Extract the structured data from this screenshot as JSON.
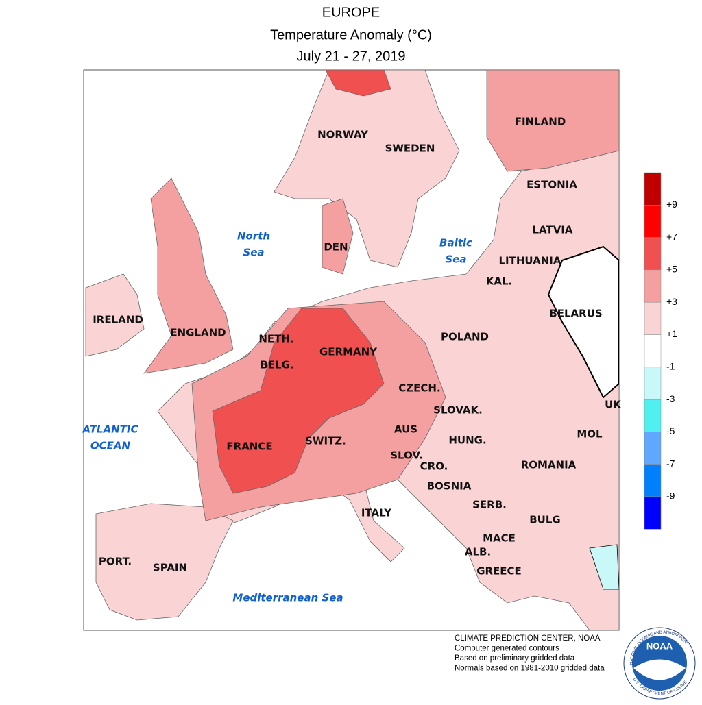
{
  "header": {
    "title": "EUROPE",
    "subtitle": "Temperature Anomaly (°C)",
    "period": "July 21 - 27, 2019"
  },
  "seas": [
    [
      "North",
      "Sea"
    ],
    [
      "Baltic",
      "Sea"
    ],
    [
      "ATLANTIC",
      "OCEAN"
    ],
    [
      "Mediterranean Sea"
    ]
  ],
  "countries": [
    "NORWAY",
    "SWEDEN",
    "FINLAND",
    "ESTONIA",
    "LATVIA",
    "LITHUANIA",
    "KAL.",
    "BELARUS",
    "IRELAND",
    "ENGLAND",
    "DEN",
    "NETH.",
    "BELG.",
    "GERMANY",
    "POLAND",
    "CZECH.",
    "SLOVAK.",
    "UK",
    "FRANCE",
    "SWITZ.",
    "AUS",
    "HUNG.",
    "MOL",
    "SLOV.",
    "CRO.",
    "ROMANIA",
    "BOSNIA",
    "SERB.",
    "BULG",
    "MACE",
    "ALB.",
    "GREECE",
    "ITALY",
    "PORT.",
    "SPAIN"
  ],
  "legend": {
    "colors": [
      "#c00000",
      "#ff0000",
      "#f05050",
      "#f4a0a0",
      "#fad4d4",
      "#ffffff",
      "#c8f8f8",
      "#50f0f0",
      "#60a8ff",
      "#0080ff",
      "#0000ff"
    ],
    "labels": [
      "+9",
      "+7",
      "+5",
      "+3",
      "+1",
      "-1",
      "-3",
      "-5",
      "-7",
      "-9"
    ]
  },
  "footer": [
    "CLIMATE PREDICTION CENTER, NOAA",
    "Computer generated contours",
    "Based on preliminary gridded data",
    "Normals based on 1981-2010 gridded data"
  ],
  "logo": {
    "name": "NOAA",
    "ring_top": "NATIONAL OCEANIC AND ATMOSPHERIC ADMINISTRATION",
    "ring_bottom": "U.S. DEPARTMENT OF COMMERCE"
  }
}
